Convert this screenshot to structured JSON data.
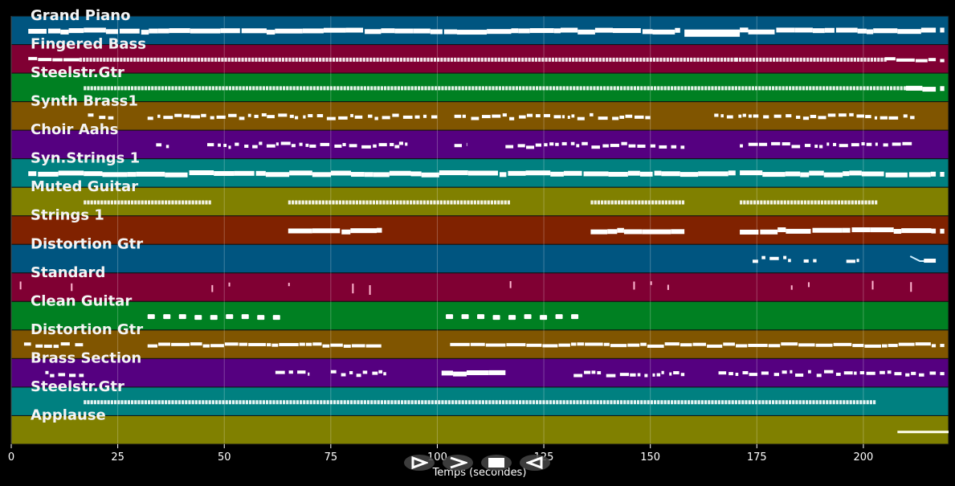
{
  "chart_data": {
    "type": "piano-roll",
    "title": "",
    "xlabel": "Temps (secondes)",
    "ylabel": "",
    "xlim": [
      0,
      220
    ],
    "x_ticks": [
      0,
      25,
      50,
      75,
      100,
      125,
      150,
      175,
      200
    ],
    "grid": true,
    "tracks": [
      {
        "name": "Grand Piano",
        "color": "#005580",
        "segments": [
          [
            4,
            17,
            "thick"
          ],
          [
            17,
            42,
            "thick"
          ],
          [
            42,
            90,
            "thick"
          ],
          [
            90,
            157,
            "thick"
          ],
          [
            158,
            171,
            "block"
          ],
          [
            171,
            217,
            "thick"
          ],
          [
            218,
            219,
            "thick"
          ]
        ]
      },
      {
        "name": "Fingered Bass",
        "color": "#800033",
        "segments": [
          [
            4,
            16,
            "thin"
          ],
          [
            16,
            170,
            "dotted"
          ],
          [
            170,
            205,
            "dotted"
          ],
          [
            205,
            217,
            "thin"
          ],
          [
            218,
            219,
            "thin"
          ]
        ]
      },
      {
        "name": "Steelstr.Gtr",
        "color": "#008022",
        "segments": [
          [
            17,
            210,
            "dotted"
          ],
          [
            210,
            217,
            "thick"
          ],
          [
            218,
            219,
            "thick"
          ]
        ]
      },
      {
        "name": "Synth Brass1",
        "color": "#805500",
        "segments": [
          [
            18,
            24,
            "sparse"
          ],
          [
            32,
            60,
            "sparse"
          ],
          [
            60,
            100,
            "sparse"
          ],
          [
            104,
            150,
            "sparse"
          ],
          [
            165,
            212,
            "sparse"
          ]
        ]
      },
      {
        "name": "Choir Aahs",
        "color": "#550080",
        "segments": [
          [
            34,
            37,
            "sparse"
          ],
          [
            46,
            70,
            "sparse"
          ],
          [
            70,
            92,
            "sparse"
          ],
          [
            90,
            93,
            "sparse"
          ],
          [
            104,
            107,
            "sparse"
          ],
          [
            116,
            158,
            "sparse"
          ],
          [
            171,
            212,
            "sparse"
          ]
        ]
      },
      {
        "name": "Syn.Strings 1",
        "color": "#008080",
        "segments": [
          [
            4,
            17,
            "thick"
          ],
          [
            17,
            157,
            "thick"
          ],
          [
            157,
            170,
            "thick"
          ],
          [
            171,
            217,
            "thick"
          ],
          [
            218,
            219,
            "thick"
          ]
        ]
      },
      {
        "name": "Muted Guitar",
        "color": "#808000",
        "segments": [
          [
            17,
            47,
            "dotted"
          ],
          [
            65,
            117,
            "dotted"
          ],
          [
            136,
            158,
            "dotted"
          ],
          [
            171,
            203,
            "dotted"
          ]
        ]
      },
      {
        "name": "Strings 1",
        "color": "#802200",
        "segments": [
          [
            65,
            87,
            "thick"
          ],
          [
            136,
            158,
            "thick"
          ],
          [
            171,
            217,
            "thick"
          ],
          [
            218,
            219,
            "thick"
          ]
        ]
      },
      {
        "name": "Distortion Gtr",
        "color": "#005580",
        "segments": [
          [
            174,
            177,
            "sparse"
          ],
          [
            178,
            183,
            "sparse"
          ],
          [
            186,
            189,
            "sparse"
          ],
          [
            196,
            199,
            "sparse"
          ],
          [
            211,
            217,
            "slide"
          ]
        ]
      },
      {
        "name": "Standard",
        "color": "#800033",
        "segments": [
          [
            2,
            2.5,
            "tick"
          ],
          [
            14,
            14.5,
            "tick"
          ],
          [
            47,
            47.5,
            "tick"
          ],
          [
            51,
            51.5,
            "tick"
          ],
          [
            65,
            65.5,
            "tick"
          ],
          [
            80,
            80.5,
            "tick"
          ],
          [
            84,
            84.5,
            "tick"
          ],
          [
            117,
            117.5,
            "tick"
          ],
          [
            146,
            146.5,
            "tick"
          ],
          [
            150,
            150.5,
            "tick"
          ],
          [
            154,
            154.5,
            "tick"
          ],
          [
            183,
            183.5,
            "tick"
          ],
          [
            187,
            187.5,
            "tick"
          ],
          [
            202,
            202.5,
            "tick"
          ],
          [
            211,
            211.5,
            "tick"
          ]
        ]
      },
      {
        "name": "Clean Guitar",
        "color": "#008022",
        "segments": [
          [
            32,
            63,
            "dashes"
          ],
          [
            102,
            134,
            "dashes"
          ]
        ]
      },
      {
        "name": "Distortion Gtr",
        "color": "#805500",
        "segments": [
          [
            3,
            17,
            "sparse"
          ],
          [
            32,
            87,
            "thin"
          ],
          [
            103,
            217,
            "thin"
          ],
          [
            218,
            219,
            "thin"
          ]
        ]
      },
      {
        "name": "Brass Section",
        "color": "#550080",
        "segments": [
          [
            8,
            17,
            "sparse"
          ],
          [
            62,
            70,
            "sparse"
          ],
          [
            75,
            88,
            "sparse"
          ],
          [
            101,
            116,
            "thick"
          ],
          [
            132,
            158,
            "sparse"
          ],
          [
            166,
            217,
            "sparse"
          ],
          [
            218,
            219,
            "sparse"
          ]
        ]
      },
      {
        "name": "Steelstr.Gtr",
        "color": "#008080",
        "segments": [
          [
            17,
            203,
            "dotted"
          ]
        ]
      },
      {
        "name": "Applause",
        "color": "#808000",
        "segments": [
          [
            208,
            220,
            "line"
          ]
        ]
      }
    ]
  },
  "controls": {
    "play_label": "Play",
    "forward_label": "Forward",
    "stop_label": "Stop",
    "rewind_label": "Rewind"
  }
}
